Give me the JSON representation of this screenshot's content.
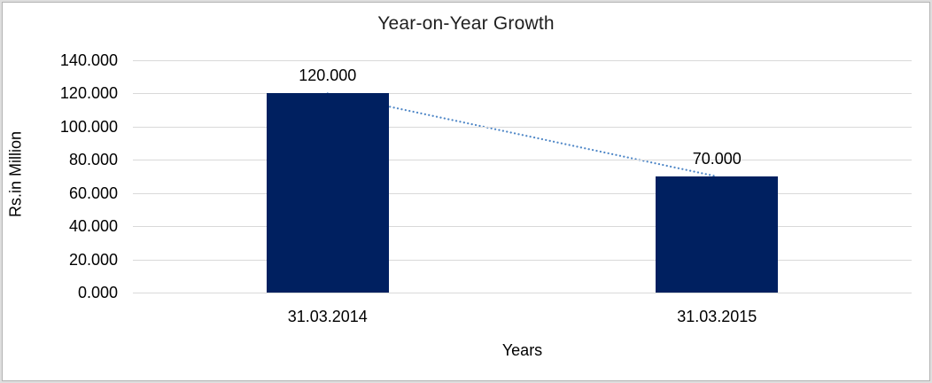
{
  "chart_data": {
    "type": "bar",
    "title": "Year-on-Year Growth",
    "xlabel": "Years",
    "ylabel": "Rs.in Million",
    "categories": [
      "31.03.2014",
      "31.03.2015"
    ],
    "values": [
      120,
      70
    ],
    "data_labels": [
      "120.000",
      "70.000"
    ],
    "y_ticks": [
      0,
      20,
      40,
      60,
      80,
      100,
      120,
      140
    ],
    "y_tick_labels": [
      "0.000",
      "20.000",
      "40.000",
      "60.000",
      "80.000",
      "100.000",
      "120.000",
      "140.000"
    ],
    "ylim": [
      0,
      140
    ],
    "grid": true,
    "legend": "none",
    "trendline": {
      "style": "dotted",
      "connects": "bar tops",
      "from_value": 120,
      "to_value": 70
    },
    "colors": {
      "bar": "#002060",
      "trendline": "#4f87c7",
      "gridline": "#d9d9d9",
      "text": "#000000",
      "title": "#1f1f1f"
    }
  }
}
